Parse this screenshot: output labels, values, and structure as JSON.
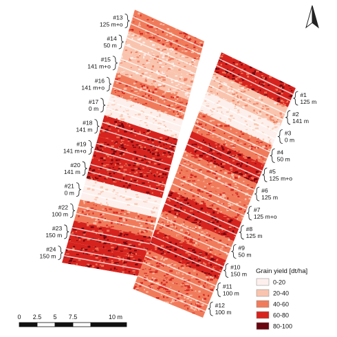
{
  "legend": {
    "title": "Grain yield [dt/ha]",
    "items": [
      {
        "label": "0-20",
        "color": "#fdf0ec"
      },
      {
        "label": "20-40",
        "color": "#f9c4ae"
      },
      {
        "label": "40-60",
        "color": "#f07b5b"
      },
      {
        "label": "60-80",
        "color": "#d6231e"
      },
      {
        "label": "80-100",
        "color": "#6a0610"
      }
    ]
  },
  "scale_bar": {
    "labels": [
      "0",
      "2.5",
      "5",
      "7.5",
      "10 m"
    ]
  },
  "north_arrow": {
    "icon": "north-arrow-icon"
  },
  "left_strip_plots": [
    {
      "id": "#13",
      "treatment": "125 m+o",
      "yield_class": "40-60"
    },
    {
      "id": "#14",
      "treatment": "50 m",
      "yield_class": "20-40"
    },
    {
      "id": "#15",
      "treatment": "141 m+o",
      "yield_class": "20-40"
    },
    {
      "id": "#16",
      "treatment": "141 m+o",
      "yield_class": "40-60"
    },
    {
      "id": "#17",
      "treatment": "0 m",
      "yield_class": "0-20"
    },
    {
      "id": "#18",
      "treatment": "141 m",
      "yield_class": "60-80"
    },
    {
      "id": "#19",
      "treatment": "141 m+o",
      "yield_class": "60-80"
    },
    {
      "id": "#20",
      "treatment": "141 m",
      "yield_class": "60-80"
    },
    {
      "id": "#21",
      "treatment": "0 m",
      "yield_class": "0-20"
    },
    {
      "id": "#22",
      "treatment": "100 m",
      "yield_class": "40-60"
    },
    {
      "id": "#23",
      "treatment": "150 m",
      "yield_class": "60-80"
    },
    {
      "id": "#24",
      "treatment": "150 m",
      "yield_class": "60-80"
    }
  ],
  "right_strip_plots": [
    {
      "id": "#1",
      "treatment": "125 m",
      "yield_class": "60-80"
    },
    {
      "id": "#2",
      "treatment": "141 m",
      "yield_class": "20-40"
    },
    {
      "id": "#3",
      "treatment": "0 m",
      "yield_class": "0-20"
    },
    {
      "id": "#4",
      "treatment": "50 m",
      "yield_class": "40-60"
    },
    {
      "id": "#5",
      "treatment": "125 m+o",
      "yield_class": "60-80"
    },
    {
      "id": "#6",
      "treatment": "125 m",
      "yield_class": "40-60"
    },
    {
      "id": "#7",
      "treatment": "125 m+o",
      "yield_class": "40-60"
    },
    {
      "id": "#8",
      "treatment": "125 m",
      "yield_class": "60-80"
    },
    {
      "id": "#9",
      "treatment": "50 m",
      "yield_class": "40-60"
    },
    {
      "id": "#10",
      "treatment": "150 m",
      "yield_class": "60-80"
    },
    {
      "id": "#11",
      "treatment": "100 m",
      "yield_class": "40-60"
    },
    {
      "id": "#12",
      "treatment": "100 m",
      "yield_class": "40-60"
    }
  ]
}
